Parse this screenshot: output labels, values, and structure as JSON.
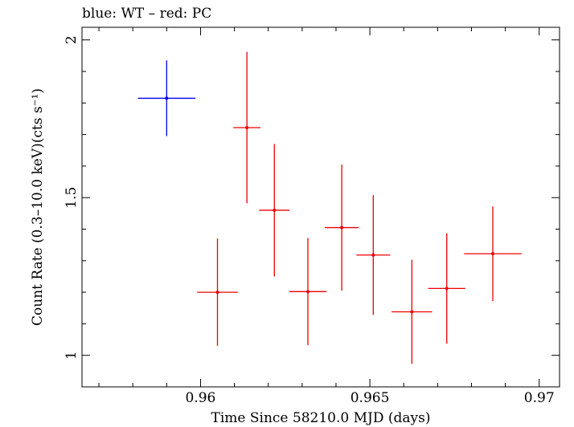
{
  "chart_data": {
    "type": "scatter",
    "title": "blue: WT – red: PC",
    "xlabel": "Time Since 58210.0 MJD (days)",
    "ylabel": "Count Rate (0.3–10.0 keV)(cts s⁻¹)",
    "xlim": [
      0.9565,
      0.9706
    ],
    "ylim": [
      0.9,
      2.04
    ],
    "x_ticks": [
      0.96,
      0.965,
      0.97
    ],
    "x_tick_labels": [
      "0.96",
      "0.965",
      "0.97"
    ],
    "y_ticks": [
      1,
      1.5,
      2
    ],
    "y_tick_labels": [
      "1",
      "1.5",
      "2"
    ],
    "grid": false,
    "series": [
      {
        "name": "WT",
        "color": "#0000ee",
        "points": [
          {
            "x": 0.959,
            "xerr": 0.00085,
            "y": 1.815,
            "yerr": 0.12
          }
        ]
      },
      {
        "name": "PC",
        "color": "#ee0000",
        "points": [
          {
            "x": 0.9605,
            "xerr": 0.0006,
            "y": 1.2,
            "yerr": 0.17
          },
          {
            "x": 0.96137,
            "xerr": 0.0004,
            "y": 1.722,
            "yerr": 0.24
          },
          {
            "x": 0.96218,
            "xerr": 0.00045,
            "y": 1.46,
            "yerr": 0.21
          },
          {
            "x": 0.96317,
            "xerr": 0.00055,
            "y": 1.202,
            "yerr": 0.17
          },
          {
            "x": 0.96417,
            "xerr": 0.0005,
            "y": 1.405,
            "yerr": 0.2
          },
          {
            "x": 0.9651,
            "xerr": 0.0005,
            "y": 1.318,
            "yerr": 0.19
          },
          {
            "x": 0.96624,
            "xerr": 0.0006,
            "y": 1.138,
            "yerr": 0.165
          },
          {
            "x": 0.96727,
            "xerr": 0.00055,
            "y": 1.212,
            "yerr": 0.175
          },
          {
            "x": 0.96863,
            "xerr": 0.00085,
            "y": 1.322,
            "yerr": 0.15
          }
        ]
      }
    ]
  }
}
